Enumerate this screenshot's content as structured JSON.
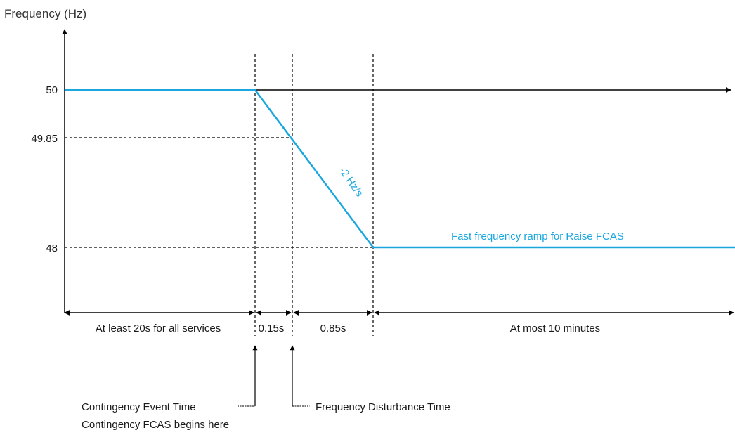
{
  "y_axis_label": "Frequency (Hz)",
  "y_ticks": [
    "50",
    "49.85",
    "48"
  ],
  "slope_label": "-2 Hz/s",
  "ramp_label": "Fast frequency ramp for Raise FCAS",
  "intervals": [
    "At least 20s for all services",
    "0.15s",
    "0.85s",
    "At most 10 minutes"
  ],
  "annotations": {
    "contingency_event": "Contingency Event Time",
    "contingency_begins": "Contingency FCAS begins here",
    "frequency_disturbance": "Frequency Disturbance Time"
  },
  "colors": {
    "frequency_trace": "#1aa7e0",
    "axes": "#000000"
  }
}
